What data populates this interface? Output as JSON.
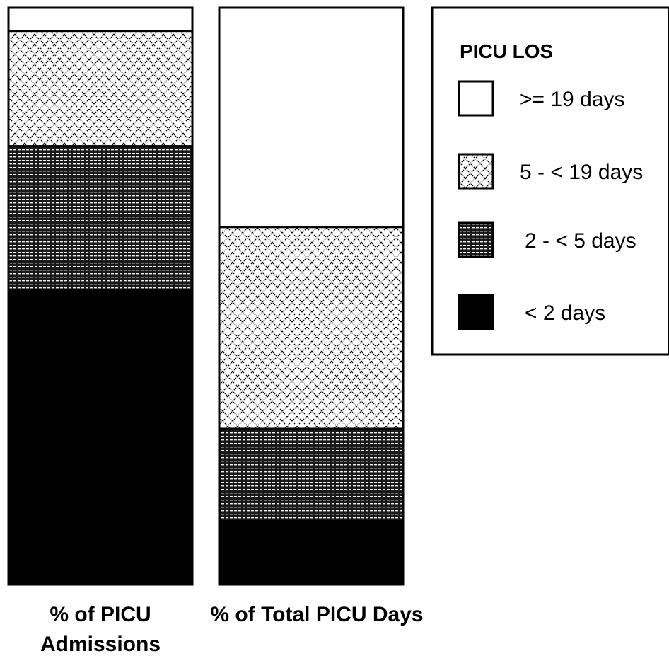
{
  "chart_data": {
    "type": "bar",
    "stacked": true,
    "normalized": true,
    "categories": [
      "% of PICU Admissions",
      "% of Total PICU Days"
    ],
    "category_label_lines": [
      [
        "% of PICU",
        "Admissions"
      ],
      [
        "% of Total PICU Days"
      ]
    ],
    "ylim": [
      0,
      100
    ],
    "grid": false,
    "legend_title": "PICU LOS",
    "legend_placement": "top-right",
    "series": [
      {
        "name": "< 2 days",
        "values": [
          51,
          11
        ],
        "fill": "solid-black"
      },
      {
        "name": "2 - < 5 days",
        "values": [
          25,
          16
        ],
        "fill": "dense-dots"
      },
      {
        "name": "5 - < 19 days",
        "values": [
          20,
          35
        ],
        "fill": "crosshatch"
      },
      {
        "name": ">= 19 days",
        "values": [
          4,
          38
        ],
        "fill": "white"
      }
    ],
    "legend_order": [
      ">= 19 days",
      "5 - < 19 days",
      "2 - < 5 days",
      "< 2 days"
    ]
  }
}
